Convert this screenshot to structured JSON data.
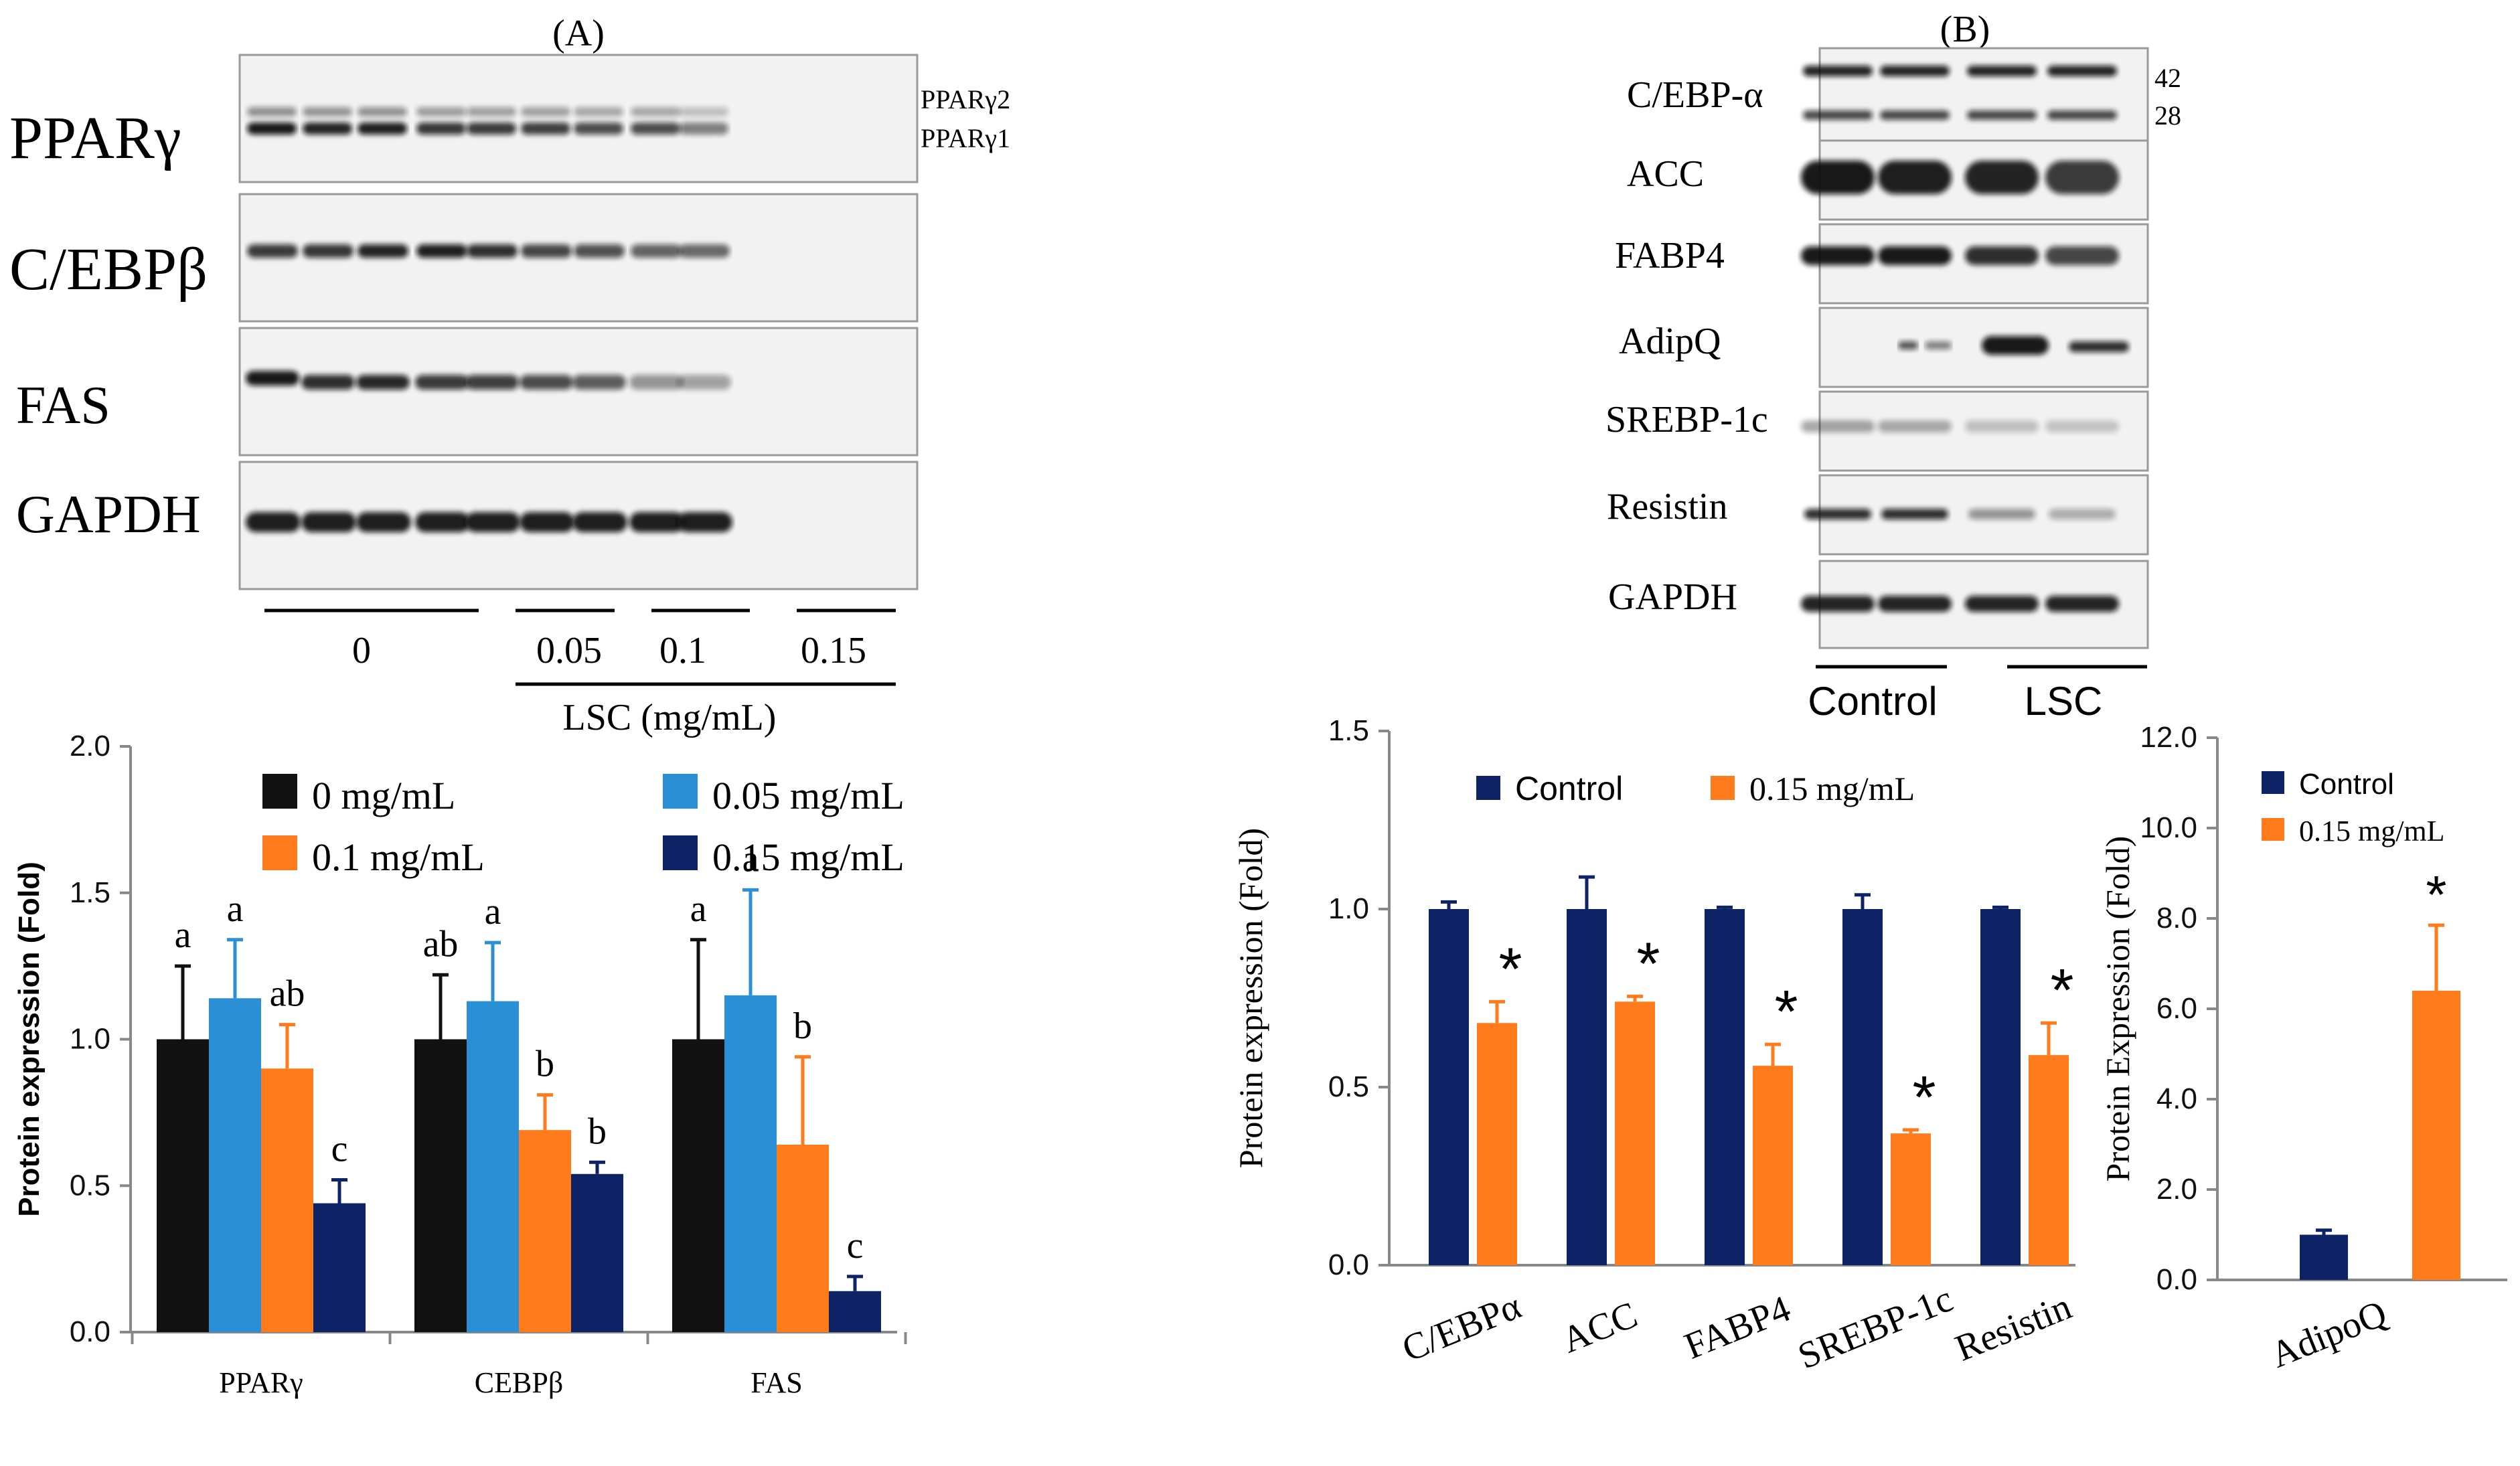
{
  "panel_a": {
    "label": "(A)",
    "blot_labels": [
      "PPARγ",
      "C/EBPβ",
      "FAS",
      "GAPDH"
    ],
    "isoform_labels": [
      "PPARγ2",
      "PPARγ1"
    ],
    "dose_labels": [
      "0",
      "0.05",
      "0.1",
      "0.15"
    ],
    "treatment_label": "LSC (mg/mL)"
  },
  "panel_b": {
    "label": "(B)",
    "blot_labels": [
      "C/EBP-α",
      "ACC",
      "FABP4",
      "AdipQ",
      "SREBP-1c",
      "Resistin",
      "GAPDH"
    ],
    "mw_labels": [
      "42",
      "28"
    ],
    "group_labels": [
      "Control",
      "LSC"
    ]
  },
  "colors": {
    "black": "#111111",
    "light_blue": "#2b8fd6",
    "orange": "#ff7b1c",
    "navy": "#0d2366"
  },
  "chart_data": [
    {
      "type": "bar",
      "categories": [
        "PPARγ",
        "CEBPβ",
        "FAS"
      ],
      "ylabel": "Protein expression (Fold)",
      "ylim": [
        0,
        2.0
      ],
      "yticks": [
        "0.0",
        "0.5",
        "1.0",
        "1.5",
        "2.0"
      ],
      "legend_position": "top",
      "series": [
        {
          "name": "0 mg/mL",
          "values": [
            1.0,
            1.0,
            1.0
          ],
          "errors": [
            0.25,
            0.22,
            0.34
          ],
          "letters": [
            "a",
            "ab",
            "a"
          ],
          "color": "#111111"
        },
        {
          "name": "0.05 mg/mL",
          "values": [
            1.14,
            1.13,
            1.15
          ],
          "errors": [
            0.2,
            0.2,
            0.36
          ],
          "letters": [
            "a",
            "a",
            "a"
          ],
          "color": "#2b8fd6"
        },
        {
          "name": "0.1 mg/mL",
          "values": [
            0.9,
            0.69,
            0.64
          ],
          "errors": [
            0.15,
            0.12,
            0.3
          ],
          "letters": [
            "ab",
            "b",
            "b"
          ],
          "color": "#ff7b1c"
        },
        {
          "name": "0.15 mg/mL",
          "values": [
            0.44,
            0.54,
            0.14
          ],
          "errors": [
            0.08,
            0.04,
            0.05
          ],
          "letters": [
            "c",
            "b",
            "c"
          ],
          "color": "#0d2366"
        }
      ]
    },
    {
      "type": "bar",
      "categories": [
        "C/EBPα",
        "ACC",
        "FABP4",
        "SREBP-1c",
        "Resistin"
      ],
      "ylabel": "Protein  expression  (Fold)",
      "ylim": [
        0,
        1.5
      ],
      "yticks": [
        "0.0",
        "0.5",
        "1.0",
        "1.5"
      ],
      "legend_position": "top",
      "series": [
        {
          "name": "Control",
          "values": [
            1.0,
            1.0,
            1.0,
            1.0,
            1.0
          ],
          "errors": [
            0.02,
            0.09,
            0.005,
            0.04,
            0.005
          ],
          "color": "#0d2366"
        },
        {
          "name": "0.15 mg/mL",
          "values": [
            0.68,
            0.74,
            0.56,
            0.37,
            0.59
          ],
          "errors": [
            0.06,
            0.015,
            0.06,
            0.01,
            0.09
          ],
          "color": "#ff7b1c"
        }
      ],
      "significance": [
        "*",
        "*",
        "*",
        "*",
        "*"
      ]
    },
    {
      "type": "bar",
      "categories": [
        "AdipoQ"
      ],
      "ylabel": "Protein Expression (Fold)",
      "ylim": [
        0,
        12.0
      ],
      "yticks": [
        "0.0",
        "2.0",
        "4.0",
        "6.0",
        "8.0",
        "10.0",
        "12.0"
      ],
      "legend_position": "top-left",
      "series": [
        {
          "name": "Control",
          "values": [
            1.0
          ],
          "errors": [
            0.1
          ],
          "color": "#0d2366"
        },
        {
          "name": "0.15 mg/mL",
          "values": [
            6.4
          ],
          "errors": [
            1.45
          ],
          "color": "#ff7b1c"
        }
      ],
      "significance": [
        "*"
      ]
    }
  ]
}
